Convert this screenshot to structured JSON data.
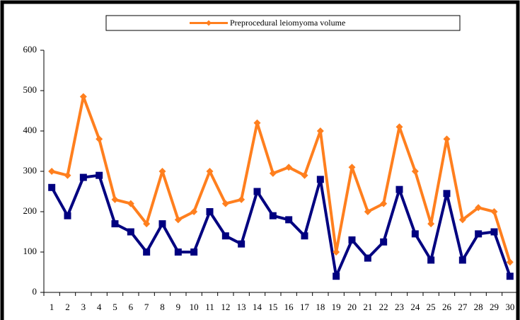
{
  "chart_data": {
    "type": "line",
    "categories": [
      "1",
      "2",
      "3",
      "4",
      "5",
      "6",
      "7",
      "8",
      "9",
      "10",
      "11",
      "12",
      "13",
      "14",
      "15",
      "16",
      "17",
      "18",
      "19",
      "20",
      "21",
      "22",
      "23",
      "24",
      "25",
      "26",
      "27",
      "28",
      "29",
      "30"
    ],
    "series": [
      {
        "name": "Preprocedural leiomyoma volume",
        "color": "#ff7f1e",
        "marker": "diamond",
        "values": [
          300,
          290,
          485,
          380,
          230,
          220,
          170,
          300,
          180,
          200,
          300,
          220,
          230,
          420,
          295,
          310,
          290,
          400,
          100,
          310,
          200,
          220,
          410,
          300,
          170,
          380,
          180,
          210,
          200,
          75
        ]
      },
      {
        "color": "#000080",
        "marker": "square",
        "values": [
          260,
          190,
          285,
          290,
          170,
          150,
          100,
          170,
          100,
          100,
          200,
          140,
          120,
          250,
          190,
          180,
          140,
          280,
          40,
          130,
          85,
          125,
          255,
          145,
          80,
          245,
          80,
          145,
          150,
          40
        ]
      }
    ],
    "ylim": [
      0,
      600
    ],
    "yticks": [
      0,
      100,
      200,
      300,
      400,
      500,
      600
    ],
    "legend": "top"
  }
}
